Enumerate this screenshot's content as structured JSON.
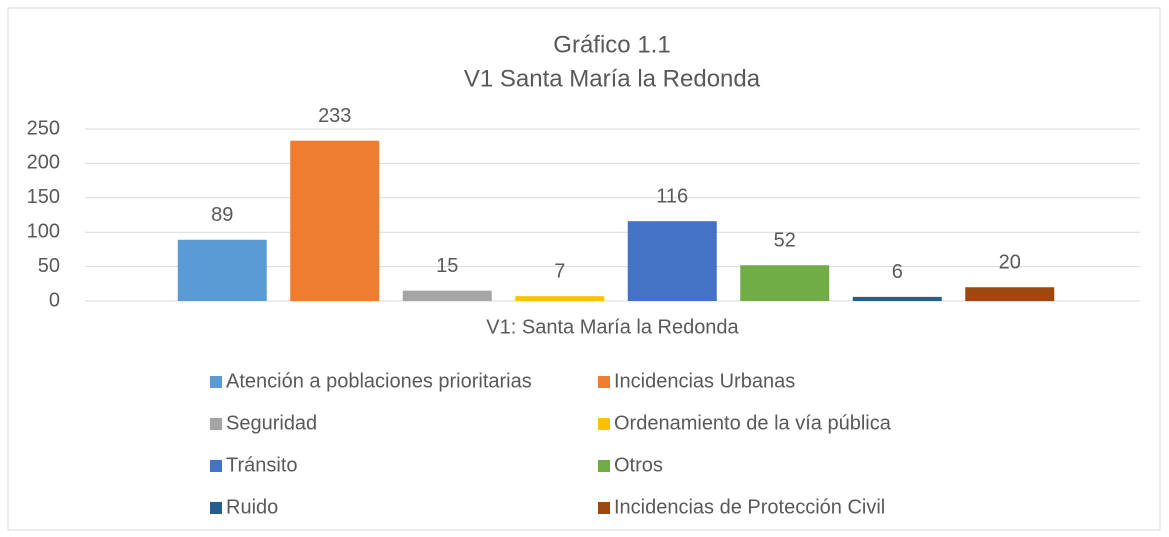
{
  "chart_data": {
    "type": "bar",
    "title": "Gráfico 1.1",
    "subtitle": "V1 Santa María la Redonda",
    "categories": [
      "V1: Santa María la Redonda"
    ],
    "series": [
      {
        "name": "Atención a poblaciones prioritarias",
        "color": "#5b9bd5",
        "values": [
          89
        ]
      },
      {
        "name": "Incidencias Urbanas",
        "color": "#ed7d31",
        "values": [
          233
        ]
      },
      {
        "name": "Seguridad",
        "color": "#a5a5a5",
        "values": [
          15
        ]
      },
      {
        "name": "Ordenamiento de la vía pública",
        "color": "#ffc000",
        "values": [
          7
        ]
      },
      {
        "name": "Tránsito",
        "color": "#4472c4",
        "values": [
          116
        ]
      },
      {
        "name": "Otros",
        "color": "#70ad47",
        "values": [
          52
        ]
      },
      {
        "name": "Ruido",
        "color": "#255e91",
        "values": [
          6
        ]
      },
      {
        "name": "Incidencias de Protección Civil",
        "color": "#9e480e",
        "values": [
          20
        ]
      }
    ],
    "ylim": [
      0,
      250
    ],
    "yticks": [
      0,
      50,
      100,
      150,
      200,
      250
    ],
    "grid": true,
    "legend": "bottom"
  }
}
